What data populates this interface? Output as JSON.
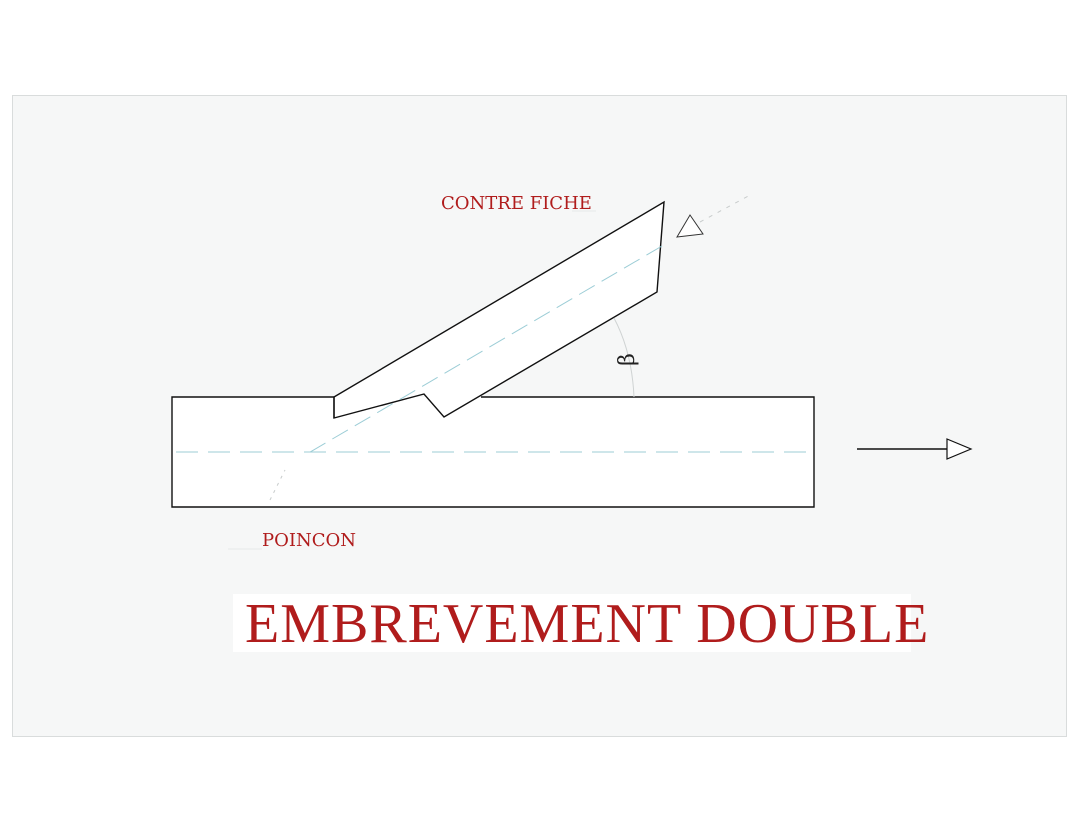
{
  "labels": {
    "contre_fiche": "CONTRE FICHE",
    "poincon": "POINCON",
    "angle": "β"
  },
  "title": "EMBREVEMENT DOUBLE",
  "colors": {
    "label": "#b01c1c",
    "outline": "#111111",
    "centerline": "#9ccdd6",
    "panel": "#f6f7f7"
  },
  "icons": {
    "force_arrow_right": "arrow-right-icon",
    "force_arrow_strut": "triangle-arrow-icon"
  }
}
